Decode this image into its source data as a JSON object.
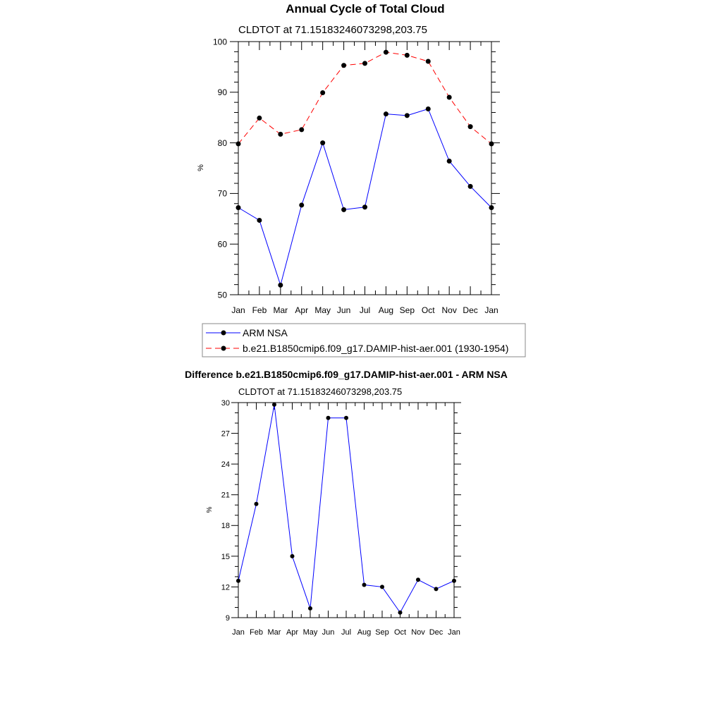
{
  "chart_data": [
    {
      "type": "line",
      "title": "Annual Cycle of Total Cloud",
      "subtitle": "CLDTOT at 71.15183246073298,203.75",
      "ylabel": "%",
      "ylim": [
        50,
        100
      ],
      "yticks": [
        50,
        60,
        70,
        80,
        90,
        100
      ],
      "categories": [
        "Jan",
        "Feb",
        "Mar",
        "Apr",
        "May",
        "Jun",
        "Jul",
        "Aug",
        "Sep",
        "Oct",
        "Nov",
        "Dec",
        "Jan"
      ],
      "series": [
        {
          "name": "ARM NSA",
          "color": "#0000ff",
          "dash": "solid",
          "values": [
            67.2,
            64.7,
            51.9,
            67.7,
            80.0,
            66.8,
            67.3,
            85.7,
            85.4,
            86.7,
            76.4,
            71.4,
            67.2
          ]
        },
        {
          "name": "b.e21.B1850cmip6.f09_g17.DAMIP-hist-aer.001 (1930-1954)",
          "color": "#ff0000",
          "dash": "dashed",
          "values": [
            79.8,
            84.9,
            81.7,
            82.6,
            89.9,
            95.3,
            95.7,
            97.9,
            97.3,
            96.1,
            89.0,
            83.2,
            79.8
          ]
        }
      ],
      "legend": "bottom"
    },
    {
      "type": "line",
      "title": "Difference b.e21.B1850cmip6.f09_g17.DAMIP-hist-aer.001 - ARM NSA",
      "subtitle": "CLDTOT at 71.15183246073298,203.75",
      "ylabel": "%",
      "ylim": [
        9,
        30
      ],
      "yticks": [
        9,
        12,
        15,
        18,
        21,
        24,
        27,
        30
      ],
      "categories": [
        "Jan",
        "Feb",
        "Mar",
        "Apr",
        "May",
        "Jun",
        "Jul",
        "Aug",
        "Sep",
        "Oct",
        "Nov",
        "Dec",
        "Jan"
      ],
      "series": [
        {
          "color": "#0000ff",
          "dash": "solid",
          "values": [
            12.6,
            20.1,
            29.8,
            15.0,
            9.9,
            28.5,
            28.5,
            12.2,
            12.0,
            9.5,
            12.7,
            11.8,
            12.6
          ]
        }
      ]
    }
  ]
}
